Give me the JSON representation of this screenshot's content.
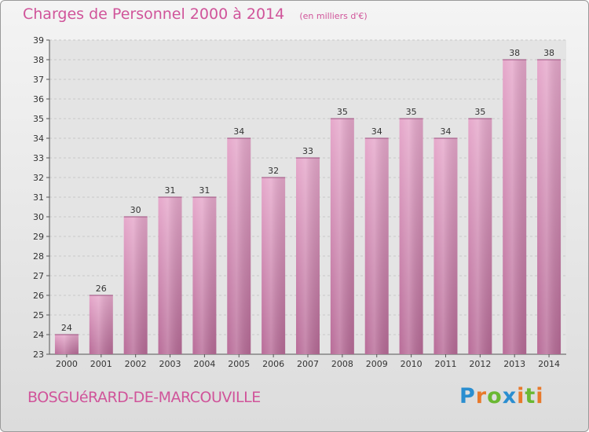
{
  "header": {
    "title": "Charges de Personnel 2000 à 2014",
    "subtitle": "(en milliers d'€)"
  },
  "footer": {
    "commune": "BOSGUéRARD-DE-MARCOUVILLE",
    "logo_text": "Proxiti",
    "logo_colors": [
      "#2a8ed0",
      "#e8792b",
      "#6ab832",
      "#2a8ed0",
      "#e8792b",
      "#6ab832",
      "#e8792b"
    ]
  },
  "colors": {
    "bar_top": "#e6a8cb",
    "bar_bottom": "#b86c98",
    "accent": "#d0549a",
    "grid": "#c8c8c8",
    "plot_bg": "#e4e4e4"
  },
  "chart_data": {
    "type": "bar",
    "categories": [
      "2000",
      "2001",
      "2002",
      "2003",
      "2004",
      "2005",
      "2006",
      "2007",
      "2008",
      "2009",
      "2010",
      "2011",
      "2012",
      "2013",
      "2014"
    ],
    "values": [
      24,
      26,
      30,
      31,
      31,
      34,
      32,
      33,
      35,
      34,
      35,
      34,
      35,
      38,
      38
    ],
    "data_labels": [
      "24",
      "26",
      "30",
      "31",
      "31",
      "34",
      "32",
      "33",
      "35",
      "34",
      "35",
      "34",
      "35",
      "38",
      "38"
    ],
    "title": "Charges de Personnel 2000 à 2014",
    "xlabel": "",
    "ylabel": "",
    "ylim": [
      23,
      39
    ],
    "yticks": [
      "23",
      "24",
      "25",
      "26",
      "27",
      "28",
      "29",
      "30",
      "31",
      "32",
      "33",
      "34",
      "35",
      "36",
      "37",
      "38",
      "39"
    ],
    "grid": true,
    "legend": "none"
  }
}
